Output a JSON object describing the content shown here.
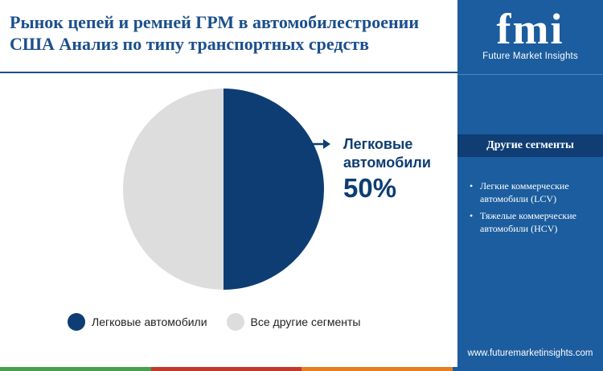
{
  "header": {
    "title": "Рынок цепей и ремней ГРМ в автомобилестроении США Анализ по типу транспортных средств"
  },
  "brand": {
    "logo_letters": "fmi",
    "logo_subtitle": "Future Market Insights",
    "website": "www.futuremarketinsights.com"
  },
  "other_segments": {
    "heading": "Другие сегменты",
    "items": [
      "Легкие коммерческие автомобили (LCV)",
      "Тяжелые коммерческие автомобили (HCV)"
    ]
  },
  "colors": {
    "primary": "#0d3d73",
    "secondary": "#dddddd",
    "sidebar": "#1b5d9e",
    "sidebar_header": "#0f3d74",
    "bottom_bar": [
      "#4a9e4f",
      "#c0392b",
      "#e67e22",
      "#1b5d9e"
    ]
  },
  "chart_data": {
    "type": "pie",
    "slices": [
      {
        "name": "Легковые автомобили",
        "value": 50,
        "color": "#0d3d73"
      },
      {
        "name": "Все другие сегменты",
        "value": 50,
        "color": "#dddddd"
      }
    ],
    "callout": {
      "label": "Легковые автомобили",
      "value_text": "50%"
    },
    "legend": [
      "Легковые автомобили",
      "Все другие сегменты"
    ],
    "legend_position": "bottom"
  }
}
